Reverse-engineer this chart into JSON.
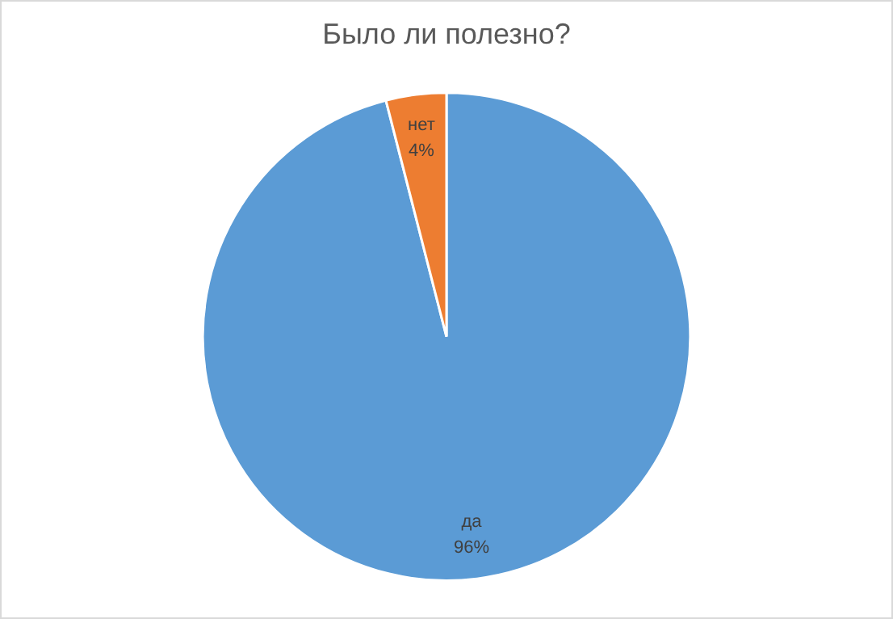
{
  "chart_data": {
    "type": "pie",
    "title": "Было ли полезно?",
    "categories": [
      "да",
      "нет"
    ],
    "values": [
      96,
      4
    ],
    "colors": [
      "#5b9bd5",
      "#ed7d31"
    ],
    "value_labels": [
      "96%",
      "4%"
    ],
    "legend": false
  }
}
